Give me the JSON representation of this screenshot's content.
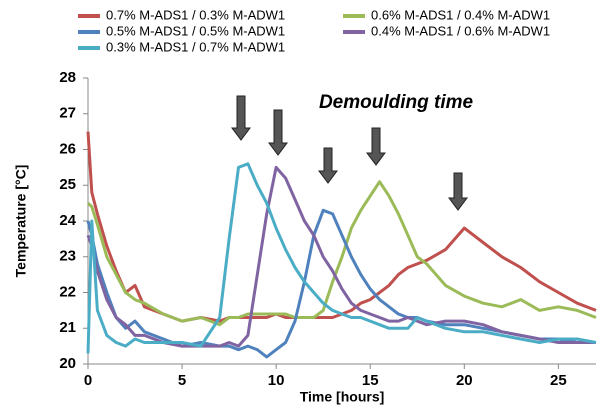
{
  "chart_data": {
    "type": "line",
    "x_label": "Time [hours]",
    "y_label": "Temperature  [°C]",
    "annotation": "Demoulding time",
    "x": [
      0,
      0.2,
      0.5,
      1,
      1.5,
      2,
      2.5,
      3,
      4,
      5,
      6,
      7,
      7.5,
      8,
      8.5,
      9,
      9.5,
      10,
      10.5,
      11,
      11.5,
      12,
      12.5,
      13,
      13.5,
      14,
      14.5,
      15,
      15.5,
      16,
      16.5,
      17,
      17.5,
      18,
      19,
      20,
      21,
      22,
      23,
      24,
      25,
      26,
      27
    ],
    "series": [
      {
        "name": "0.7% M-ADS1 / 0.3% M-ADW1",
        "color": "#c0504d",
        "values": [
          26.5,
          24.8,
          24.2,
          23.3,
          22.6,
          22.0,
          22.2,
          21.6,
          21.4,
          21.2,
          21.3,
          21.2,
          21.3,
          21.3,
          21.3,
          21.3,
          21.3,
          21.4,
          21.3,
          21.3,
          21.3,
          21.3,
          21.3,
          21.3,
          21.4,
          21.5,
          21.7,
          21.8,
          22.0,
          22.2,
          22.5,
          22.7,
          22.8,
          22.9,
          23.2,
          23.8,
          23.4,
          23.0,
          22.7,
          22.3,
          22.0,
          21.7,
          21.5
        ]
      },
      {
        "name": "0.6% M-ADS1 / 0.4% M-ADW1",
        "color": "#9bbb59",
        "values": [
          24.5,
          24.4,
          23.9,
          23.0,
          22.5,
          22.0,
          21.8,
          21.7,
          21.4,
          21.2,
          21.3,
          21.1,
          21.3,
          21.3,
          21.4,
          21.4,
          21.4,
          21.4,
          21.4,
          21.3,
          21.3,
          21.3,
          21.5,
          22.3,
          23.0,
          23.8,
          24.3,
          24.7,
          25.1,
          24.7,
          24.2,
          23.6,
          23.0,
          22.8,
          22.2,
          21.9,
          21.7,
          21.6,
          21.8,
          21.5,
          21.6,
          21.5,
          21.3
        ]
      },
      {
        "name": "0.5% M-ADS1 / 0.5% M-ADW1",
        "color": "#4f81bd",
        "values": [
          24.0,
          23.6,
          22.8,
          22.0,
          21.3,
          21.0,
          21.2,
          20.9,
          20.7,
          20.5,
          20.6,
          20.5,
          20.5,
          20.4,
          20.5,
          20.4,
          20.2,
          20.4,
          20.6,
          21.2,
          22.3,
          23.6,
          24.3,
          24.2,
          23.6,
          23.0,
          22.5,
          22.1,
          21.8,
          21.6,
          21.4,
          21.3,
          21.3,
          21.2,
          21.1,
          21.1,
          21.0,
          20.9,
          20.8,
          20.7,
          20.7,
          20.6,
          20.6
        ]
      },
      {
        "name": "0.4% M-ADS1 / 0.6% M-ADW1",
        "color": "#8064a2",
        "values": [
          23.6,
          23.3,
          22.6,
          21.8,
          21.3,
          21.1,
          20.8,
          20.8,
          20.6,
          20.5,
          20.5,
          20.5,
          20.6,
          20.5,
          20.8,
          22.5,
          24.2,
          25.5,
          25.2,
          24.6,
          24.0,
          23.6,
          23.0,
          22.6,
          22.1,
          21.7,
          21.5,
          21.4,
          21.3,
          21.2,
          21.2,
          21.3,
          21.2,
          21.1,
          21.2,
          21.2,
          21.1,
          20.9,
          20.8,
          20.7,
          20.6,
          20.6,
          20.6
        ]
      },
      {
        "name": "0.3% M-ADS1 / 0.7% M-ADW1",
        "color": "#4bacc6",
        "values": [
          20.3,
          24.0,
          21.5,
          20.8,
          20.6,
          20.5,
          20.7,
          20.6,
          20.6,
          20.6,
          20.5,
          21.3,
          23.5,
          25.5,
          25.6,
          25.0,
          24.5,
          23.8,
          23.2,
          22.7,
          22.3,
          22.0,
          21.7,
          21.5,
          21.4,
          21.3,
          21.3,
          21.2,
          21.1,
          21.0,
          21.0,
          21.0,
          21.3,
          21.2,
          21.0,
          20.9,
          20.9,
          20.8,
          20.7,
          20.6,
          20.7,
          20.7,
          20.6
        ]
      }
    ],
    "xlim": [
      0,
      27
    ],
    "xticks": [
      0,
      5,
      10,
      15,
      20,
      25
    ],
    "ylim": [
      20,
      28
    ],
    "yticks": [
      20,
      21,
      22,
      23,
      24,
      25,
      26,
      27,
      28
    ],
    "grid": false
  }
}
